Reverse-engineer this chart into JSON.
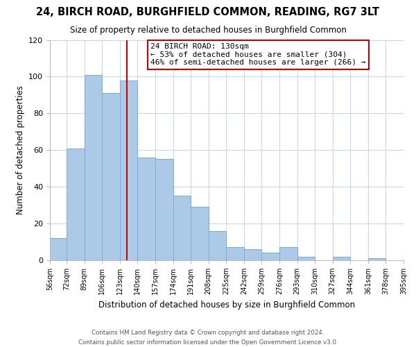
{
  "title": "24, BIRCH ROAD, BURGHFIELD COMMON, READING, RG7 3LT",
  "subtitle": "Size of property relative to detached houses in Burghfield Common",
  "xlabel": "Distribution of detached houses by size in Burghfield Common",
  "ylabel": "Number of detached properties",
  "bar_color": "#adc9e8",
  "bar_edge_color": "#7aadd4",
  "bin_edges": [
    56,
    72,
    89,
    106,
    123,
    140,
    157,
    174,
    191,
    208,
    225,
    242,
    259,
    276,
    293,
    310,
    327,
    344,
    361,
    378,
    395
  ],
  "bar_heights": [
    12,
    61,
    101,
    91,
    98,
    56,
    55,
    35,
    29,
    16,
    7,
    6,
    4,
    7,
    2,
    0,
    2,
    0,
    1,
    0
  ],
  "vline_x": 130,
  "vline_color": "#cc0000",
  "annotation_title": "24 BIRCH ROAD: 130sqm",
  "annotation_line1": "← 53% of detached houses are smaller (304)",
  "annotation_line2": "46% of semi-detached houses are larger (266) →",
  "annotation_box_color": "#ffffff",
  "annotation_box_edge_color": "#cc0000",
  "ylim": [
    0,
    120
  ],
  "yticks": [
    0,
    20,
    40,
    60,
    80,
    100,
    120
  ],
  "footer_line1": "Contains HM Land Registry data © Crown copyright and database right 2024.",
  "footer_line2": "Contains public sector information licensed under the Open Government Licence v3.0.",
  "background_color": "#ffffff",
  "grid_color": "#c8d8e8"
}
